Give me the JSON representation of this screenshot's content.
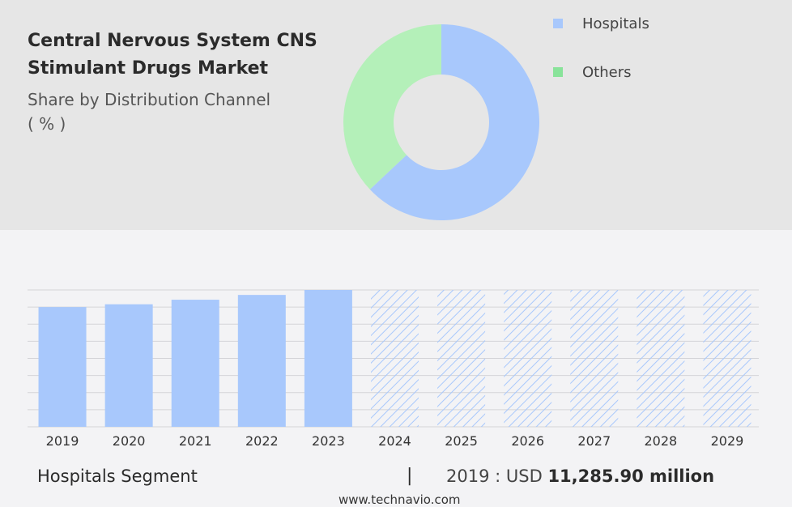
{
  "header": {
    "title": "Central Nervous System CNS Stimulant Drugs Market",
    "subtitle": "Share by Distribution Channel",
    "unit": "( % )"
  },
  "chart_data": [
    {
      "type": "pie",
      "variant": "donut",
      "categories": [
        "Hospitals",
        "Others"
      ],
      "values": [
        63,
        37
      ],
      "colors": [
        "#a8c8fc",
        "#b4f0b9"
      ],
      "legend_colors": [
        "#a8c8fc",
        "#89e39a"
      ],
      "legend": "top-right"
    },
    {
      "type": "bar",
      "categories": [
        "2019",
        "2020",
        "2021",
        "2022",
        "2023",
        "2024",
        "2025",
        "2026",
        "2027",
        "2028",
        "2029"
      ],
      "values": [
        11285.9,
        11550,
        11980,
        12430,
        12900,
        null,
        null,
        null,
        null,
        null,
        null
      ],
      "forecast_categories": [
        "2024",
        "2025",
        "2026",
        "2027",
        "2028",
        "2029"
      ],
      "bar_color": "#a8c8fc",
      "forecast_style": "hatched",
      "grid": true
    }
  ],
  "footer": {
    "segment": "Hospitals Segment",
    "separator": "|",
    "year_label": "2019 : USD",
    "value": "11,285.90 million",
    "source": "www.technavio.com"
  }
}
